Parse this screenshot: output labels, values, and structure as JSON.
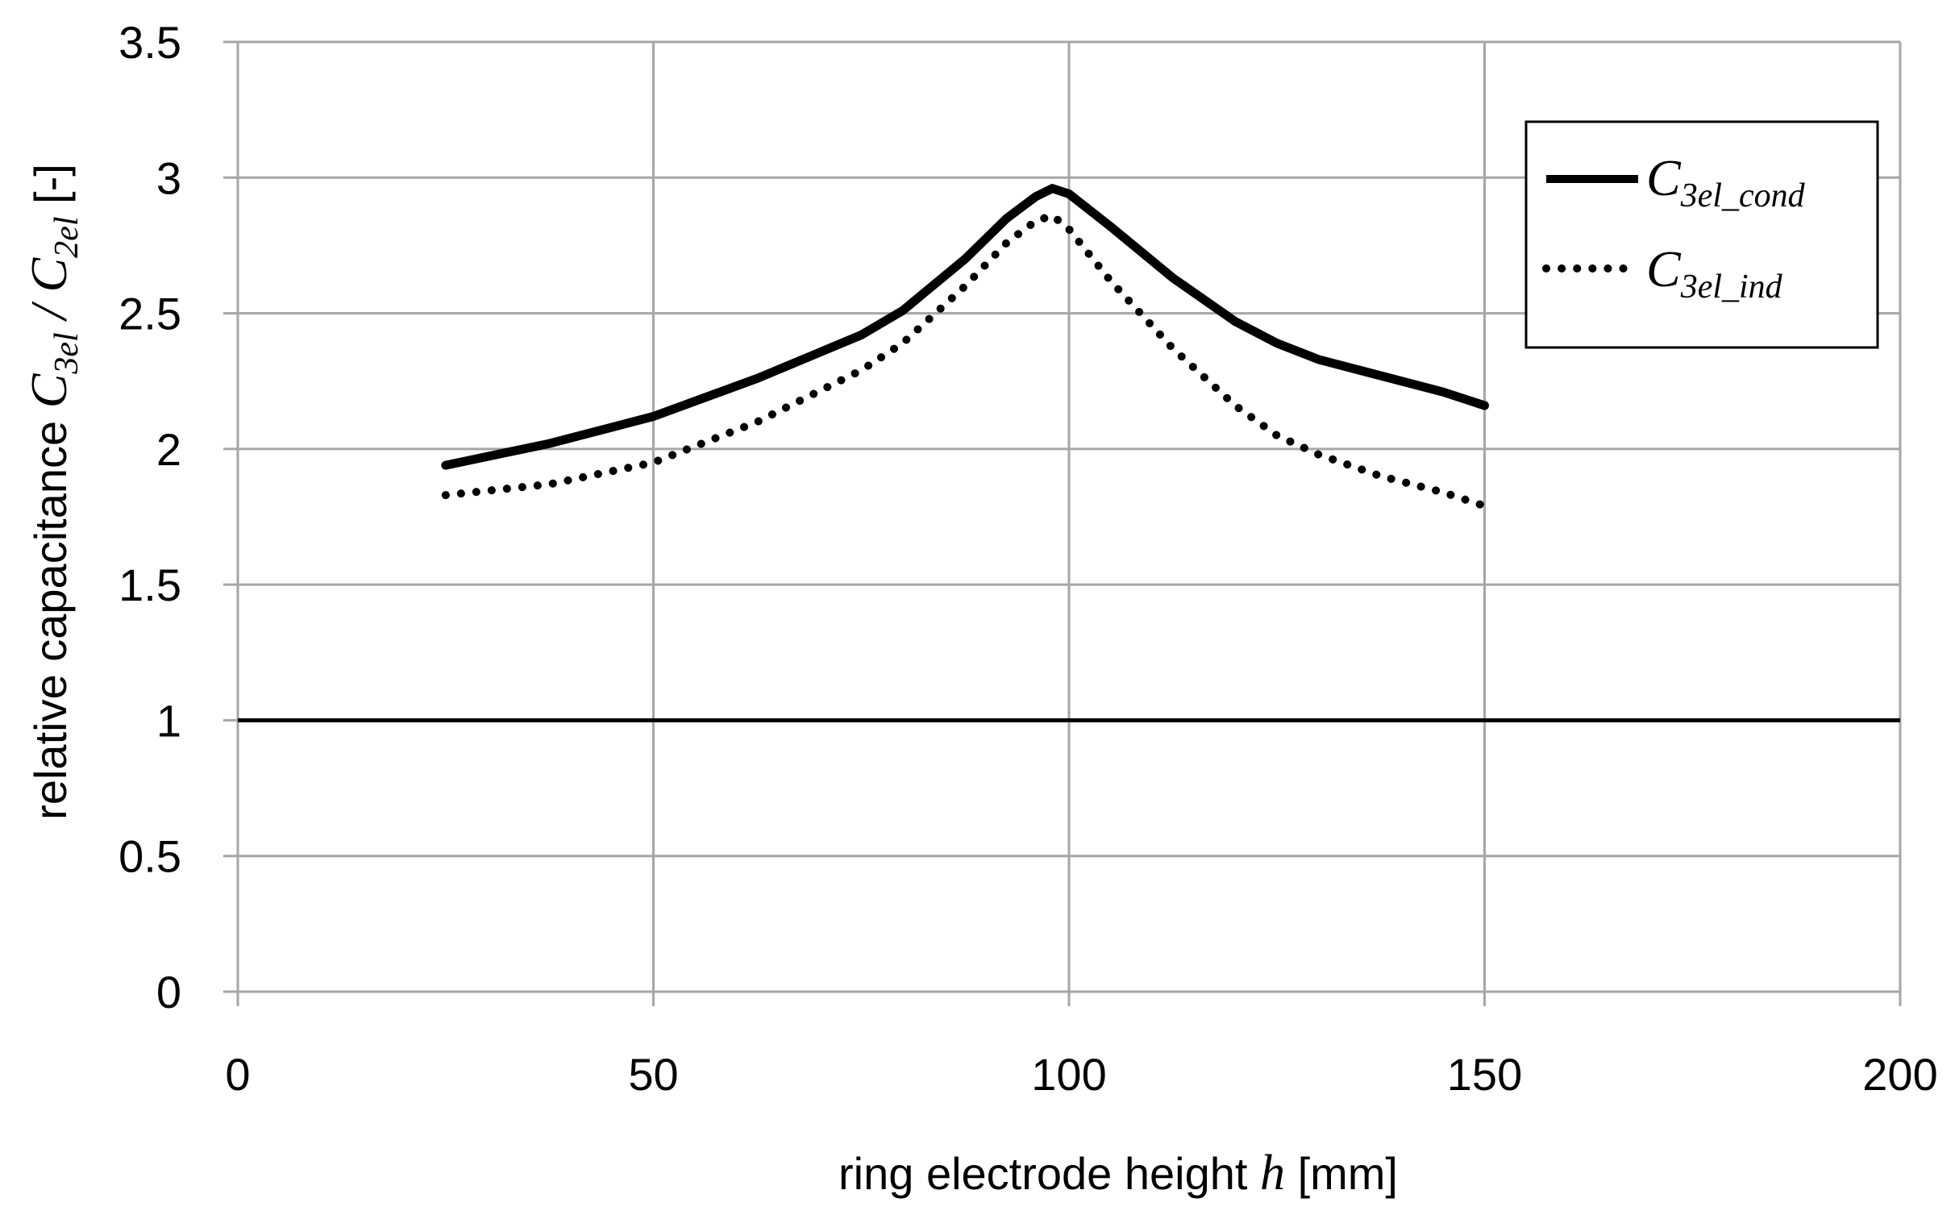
{
  "chart_data": {
    "type": "line",
    "title": "",
    "xlabel": {
      "text": "ring electrode height ",
      "var": "h",
      "unit": " [mm]"
    },
    "ylabel": {
      "text": "relative capacitance ",
      "num": "C",
      "num_sub": "3el",
      "sep": " / ",
      "den": "C",
      "den_sub": "2el",
      "unit": "  [-]"
    },
    "xlim": [
      0,
      200
    ],
    "ylim": [
      0,
      3.5
    ],
    "xticks": [
      0,
      50,
      100,
      150,
      200
    ],
    "xtick_labels": [
      "0",
      "50",
      "100",
      "150",
      "200"
    ],
    "yticks": [
      0,
      0.5,
      1,
      1.5,
      2,
      2.5,
      3,
      3.5
    ],
    "ytick_labels": [
      "0",
      "0.5",
      "1",
      "1.5",
      "2",
      "2.5",
      "3",
      "3.5"
    ],
    "grid": true,
    "legend_position": "top-right",
    "series": [
      {
        "name": "C3el_cond",
        "symbol": "C",
        "subscript": "3el_cond",
        "style": "solid",
        "color": "#000000",
        "x": [
          25,
          37.5,
          50,
          62.5,
          75,
          80,
          87.5,
          92.5,
          96,
          98,
          100,
          105,
          112.5,
          120,
          125,
          130,
          137.5,
          145,
          150
        ],
        "y": [
          1.94,
          2.02,
          2.12,
          2.26,
          2.42,
          2.51,
          2.7,
          2.85,
          2.93,
          2.96,
          2.94,
          2.82,
          2.63,
          2.47,
          2.39,
          2.33,
          2.27,
          2.21,
          2.16
        ]
      },
      {
        "name": "C3el_ind",
        "symbol": "C",
        "subscript": "3el_ind",
        "style": "dotted",
        "color": "#000000",
        "x": [
          25,
          37.5,
          50,
          62.5,
          75,
          80,
          87.5,
          92.5,
          96,
          98,
          100,
          105,
          112.5,
          120,
          125,
          130,
          137.5,
          145,
          150
        ],
        "y": [
          1.83,
          1.87,
          1.95,
          2.1,
          2.29,
          2.39,
          2.6,
          2.76,
          2.84,
          2.86,
          2.81,
          2.62,
          2.37,
          2.16,
          2.05,
          1.98,
          1.9,
          1.84,
          1.79
        ]
      }
    ],
    "reference_lines": [
      {
        "axis": "y",
        "value": 1,
        "style": "solid",
        "color": "#000000"
      }
    ]
  }
}
